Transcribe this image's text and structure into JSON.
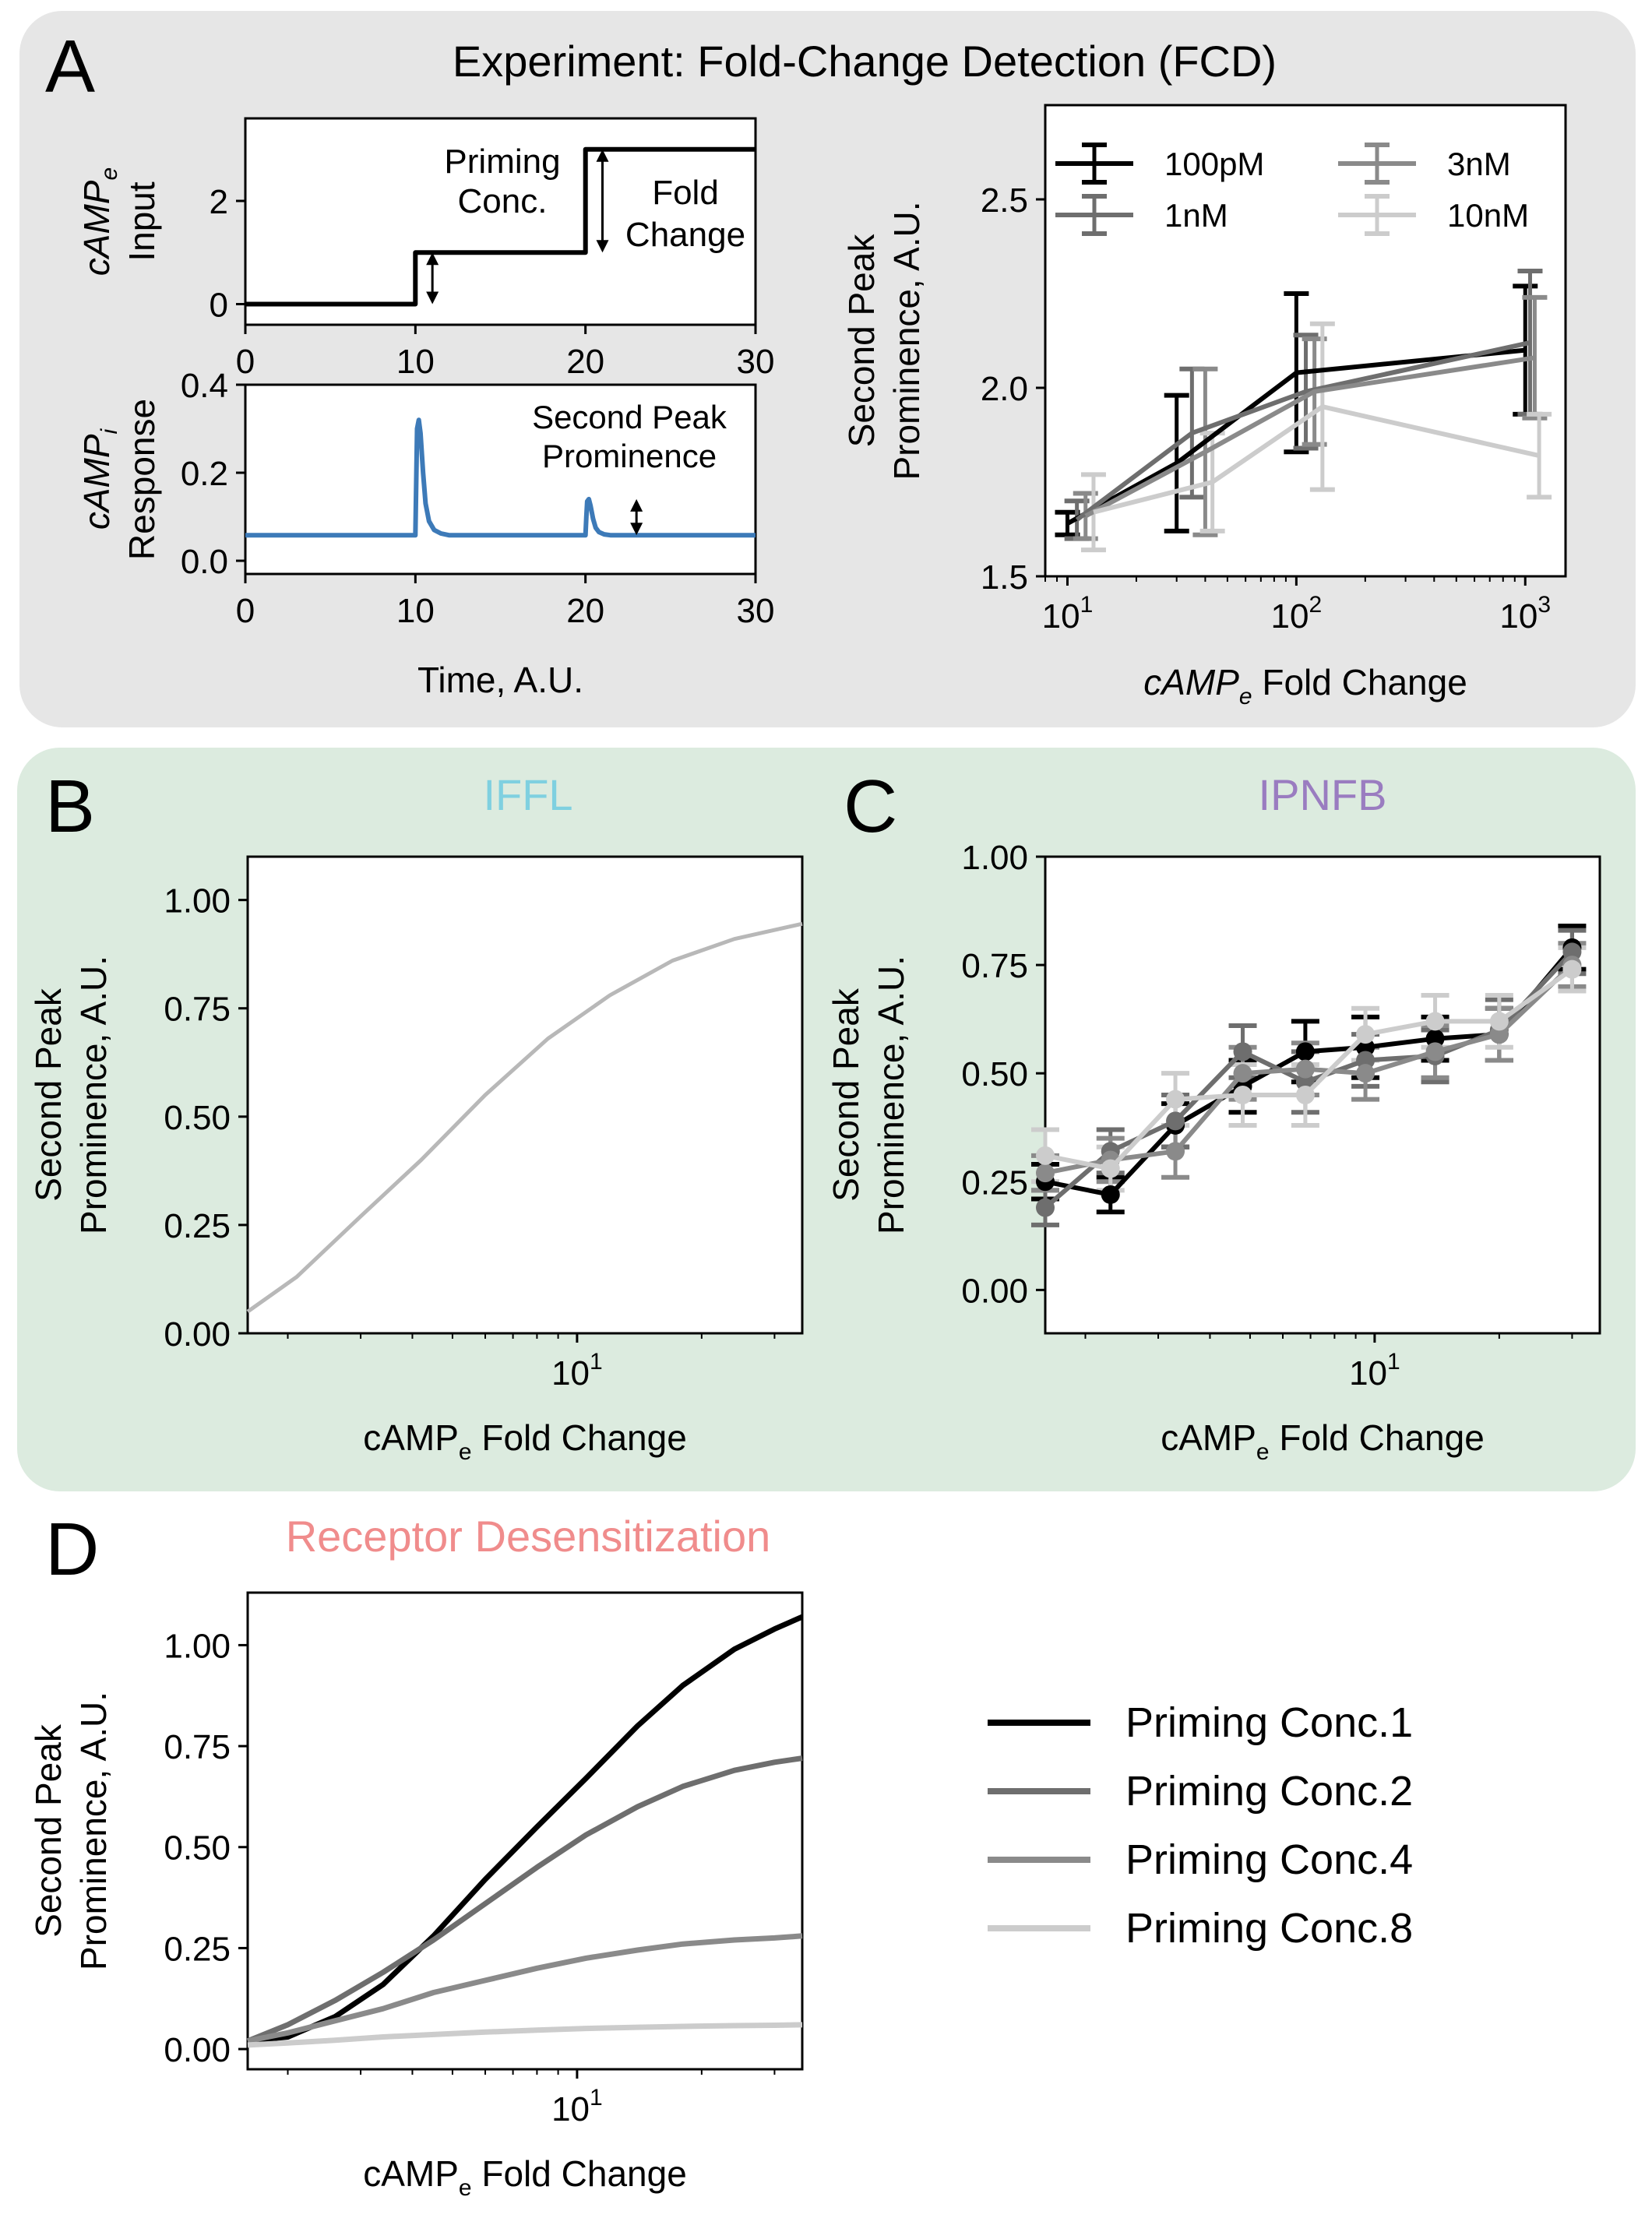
{
  "colors": {
    "panel_a_bg": "#e6e6e6",
    "panel_bc_bg": "#dcebdf",
    "iffl_title": "#7fd0e0",
    "ipnfb_title": "#9a7cc0",
    "desens_title": "#f08c8c",
    "trace_blue": "#3d7ab8",
    "black": "#000000",
    "gray_dark": "#6e6e6e",
    "gray_mid": "#8a8a8a",
    "gray_light": "#cccccc"
  },
  "panel_a": {
    "letter": "A",
    "title": "Experiment: Fold-Change Detection (FCD)"
  },
  "panel_b": {
    "letter": "B",
    "title": "IFFL"
  },
  "panel_c": {
    "letter": "C",
    "title": "IPNFB"
  },
  "panel_d": {
    "letter": "D",
    "title": "Receptor Desensitization"
  },
  "legend_d": {
    "entries": [
      "Priming Conc.1",
      "Priming Conc.2",
      "Priming Conc.4",
      "Priming Conc.8"
    ]
  },
  "chart_data": [
    {
      "id": "a_input",
      "type": "line",
      "ylabel": "cAMPe Input",
      "ylabel_main": "cAMP",
      "ylabel_sub": "e",
      "ylabel_line2": "Input",
      "xlim": [
        0,
        30
      ],
      "ylim": [
        -0.4,
        3.6
      ],
      "xticks": [
        0,
        10,
        20,
        30
      ],
      "yticks": [
        0,
        2
      ],
      "x": [
        0,
        10,
        10,
        20,
        20,
        30
      ],
      "y": [
        0,
        0,
        1,
        1,
        3,
        3
      ],
      "annotations": [
        "Priming",
        "Conc.",
        "Fold",
        "Change"
      ]
    },
    {
      "id": "a_response",
      "type": "line",
      "xlabel": "Time, A.U.",
      "ylabel": "cAMPi Response",
      "ylabel_main": "cAMP",
      "ylabel_sub": "i",
      "ylabel_line2": "Response",
      "xlim": [
        0,
        30
      ],
      "ylim": [
        -0.03,
        0.4
      ],
      "xticks": [
        0,
        10,
        20,
        30
      ],
      "yticks": [
        0.0,
        0.2,
        0.4
      ],
      "ytick_labels": [
        "0.0",
        "0.2",
        "0.4"
      ],
      "x": [
        0,
        10,
        10.05,
        10.1,
        10.2,
        10.3,
        10.45,
        10.6,
        10.8,
        11.1,
        11.5,
        12,
        20,
        20.05,
        20.1,
        20.2,
        20.3,
        20.45,
        20.6,
        20.8,
        21.1,
        21.5,
        30
      ],
      "y": [
        0.058,
        0.058,
        0.18,
        0.3,
        0.32,
        0.29,
        0.2,
        0.13,
        0.09,
        0.07,
        0.062,
        0.058,
        0.058,
        0.1,
        0.135,
        0.14,
        0.125,
        0.095,
        0.075,
        0.065,
        0.06,
        0.058,
        0.058
      ],
      "annotations": [
        "Second Peak",
        "Prominence"
      ]
    },
    {
      "id": "a_fcd",
      "type": "line",
      "scale": "log-x",
      "xlabel": "cAMPe Fold Change",
      "xlabel_main": "cAMP",
      "xlabel_sub": "e",
      "xlabel_rest": " Fold Change",
      "ylabel": "Second Peak Prominence, A.U.",
      "ylabel_line1": "Second Peak",
      "ylabel_line2": "Prominence, A.U.",
      "xlim": [
        8,
        1500
      ],
      "ylim": [
        1.5,
        2.75
      ],
      "yticks": [
        1.5,
        2.0,
        2.5
      ],
      "ytick_labels": [
        "1.5",
        "2.0",
        "2.5"
      ],
      "xticks": [
        10,
        100,
        1000
      ],
      "xtick_bases": [
        "10",
        "10",
        "10"
      ],
      "xtick_exps": [
        "1",
        "2",
        "3"
      ],
      "legend": [
        "100pM",
        "3nM",
        "1nM",
        "10nM"
      ],
      "series": [
        {
          "name": "100pM",
          "color": "#000000",
          "x": [
            10,
            30,
            100,
            1000
          ],
          "y": [
            1.64,
            1.8,
            2.04,
            2.1
          ],
          "err": [
            0.03,
            0.18,
            0.21,
            0.17
          ]
        },
        {
          "name": "1nM",
          "color": "#6e6e6e",
          "x": [
            11,
            35,
            110,
            1050
          ],
          "y": [
            1.65,
            1.88,
            1.99,
            2.12
          ],
          "err": [
            0.05,
            0.17,
            0.15,
            0.19
          ]
        },
        {
          "name": "3nM",
          "color": "#8a8a8a",
          "x": [
            12,
            40,
            120,
            1100
          ],
          "y": [
            1.66,
            1.83,
            1.99,
            2.08
          ],
          "err": [
            0.06,
            0.22,
            0.14,
            0.16
          ]
        },
        {
          "name": "10nM",
          "color": "#cccccc",
          "x": [
            13,
            43,
            130,
            1150
          ],
          "y": [
            1.67,
            1.75,
            1.95,
            1.82
          ],
          "err": [
            0.1,
            0.13,
            0.22,
            0.11
          ]
        }
      ]
    },
    {
      "id": "b_iffl",
      "type": "line",
      "scale": "log-x",
      "xlabel": "cAMPe Fold Change",
      "xlabel_main": "cAMP",
      "xlabel_sub": "e",
      "xlabel_rest": " Fold Change",
      "ylabel": "Second Peak Prominence, A.U.",
      "ylabel_line1": "Second Peak",
      "ylabel_line2": "Prominence, A.U.",
      "xlim": [
        1.6,
        35
      ],
      "ylim": [
        0,
        1.1
      ],
      "yticks": [
        0,
        0.25,
        0.5,
        0.75,
        1.0
      ],
      "ytick_labels": [
        "0.00",
        "0.25",
        "0.50",
        "0.75",
        "1.00"
      ],
      "xticks": [
        10
      ],
      "xtick_bases": [
        "10"
      ],
      "xtick_exps": [
        "1"
      ],
      "series": [
        {
          "name": "",
          "color": "#b8b8b8",
          "x": [
            1.6,
            2.1,
            3,
            4.2,
            6,
            8.5,
            12,
            17,
            24,
            35
          ],
          "y": [
            0.05,
            0.13,
            0.27,
            0.4,
            0.55,
            0.68,
            0.78,
            0.86,
            0.91,
            0.945
          ]
        }
      ]
    },
    {
      "id": "c_ipnfb",
      "type": "line",
      "scale": "log-x",
      "xlabel": "cAMPe Fold Change",
      "xlabel_main": "cAMP",
      "xlabel_sub": "e",
      "xlabel_rest": " Fold Change",
      "ylabel": "Second Peak Prominence, A.U.",
      "ylabel_line1": "Second Peak",
      "ylabel_line2": "Prominence, A.U.",
      "xlim": [
        1.6,
        35
      ],
      "ylim": [
        -0.1,
        1.0
      ],
      "yticks": [
        0,
        0.25,
        0.5,
        0.75,
        1.0
      ],
      "ytick_labels": [
        "0.00",
        "0.25",
        "0.50",
        "0.75",
        "1.00"
      ],
      "xticks": [
        10
      ],
      "xtick_bases": [
        "10"
      ],
      "xtick_exps": [
        "1"
      ],
      "series": [
        {
          "name": "",
          "color": "#000000",
          "x": [
            1.6,
            2.3,
            3.3,
            4.8,
            6.8,
            9.5,
            14,
            20,
            30
          ],
          "y": [
            0.25,
            0.22,
            0.38,
            0.47,
            0.55,
            0.56,
            0.58,
            0.59,
            0.79
          ],
          "err": [
            0.04,
            0.04,
            0.05,
            0.06,
            0.07,
            0.07,
            0.05,
            0.06,
            0.05
          ]
        },
        {
          "name": "",
          "color": "#6e6e6e",
          "x": [
            1.6,
            2.3,
            3.3,
            4.8,
            6.8,
            9.5,
            14,
            20,
            30
          ],
          "y": [
            0.19,
            0.32,
            0.39,
            0.55,
            0.48,
            0.53,
            0.54,
            0.6,
            0.78
          ],
          "err": [
            0.04,
            0.05,
            0.06,
            0.06,
            0.07,
            0.06,
            0.06,
            0.07,
            0.05
          ]
        },
        {
          "name": "",
          "color": "#8a8a8a",
          "x": [
            1.6,
            2.3,
            3.3,
            4.8,
            6.8,
            9.5,
            14,
            20,
            30
          ],
          "y": [
            0.27,
            0.3,
            0.32,
            0.5,
            0.51,
            0.5,
            0.55,
            0.59,
            0.75
          ],
          "err": [
            0.04,
            0.05,
            0.06,
            0.06,
            0.06,
            0.06,
            0.06,
            0.06,
            0.05
          ]
        },
        {
          "name": "",
          "color": "#cccccc",
          "x": [
            1.6,
            2.3,
            3.3,
            4.8,
            6.8,
            9.5,
            14,
            20,
            30
          ],
          "y": [
            0.31,
            0.28,
            0.44,
            0.45,
            0.45,
            0.59,
            0.62,
            0.62,
            0.74
          ],
          "err": [
            0.06,
            0.05,
            0.06,
            0.07,
            0.07,
            0.06,
            0.06,
            0.06,
            0.05
          ]
        }
      ]
    },
    {
      "id": "d_desens",
      "type": "line",
      "scale": "log-x",
      "xlabel": "cAMPe Fold Change",
      "xlabel_main": "cAMP",
      "xlabel_sub": "e",
      "xlabel_rest": " Fold Change",
      "ylabel": "Second Peak Prominence, A.U.",
      "ylabel_line1": "Second Peak",
      "ylabel_line2": "Prominence, A.U.",
      "xlim": [
        1.6,
        35
      ],
      "ylim": [
        -0.05,
        1.13
      ],
      "yticks": [
        0,
        0.25,
        0.5,
        0.75,
        1.0
      ],
      "ytick_labels": [
        "0.00",
        "0.25",
        "0.50",
        "0.75",
        "1.00"
      ],
      "xticks": [
        10
      ],
      "xtick_bases": [
        "10"
      ],
      "xtick_exps": [
        "1"
      ],
      "series": [
        {
          "name": "Priming Conc.1",
          "color": "#000000",
          "x": [
            1.6,
            2,
            2.6,
            3.4,
            4.5,
            6,
            8,
            10.5,
            14,
            18,
            24,
            30,
            35
          ],
          "y": [
            0.02,
            0.03,
            0.08,
            0.16,
            0.28,
            0.42,
            0.55,
            0.67,
            0.8,
            0.9,
            0.99,
            1.04,
            1.07
          ]
        },
        {
          "name": "Priming Conc.2",
          "color": "#6e6e6e",
          "x": [
            1.6,
            2,
            2.6,
            3.4,
            4.5,
            6,
            8,
            10.5,
            14,
            18,
            24,
            30,
            35
          ],
          "y": [
            0.02,
            0.06,
            0.12,
            0.19,
            0.27,
            0.36,
            0.45,
            0.53,
            0.6,
            0.65,
            0.69,
            0.71,
            0.72
          ]
        },
        {
          "name": "Priming Conc.4",
          "color": "#8a8a8a",
          "x": [
            1.6,
            2,
            2.6,
            3.4,
            4.5,
            6,
            8,
            10.5,
            14,
            18,
            24,
            30,
            35
          ],
          "y": [
            0.02,
            0.04,
            0.07,
            0.1,
            0.14,
            0.17,
            0.2,
            0.225,
            0.245,
            0.26,
            0.27,
            0.275,
            0.28
          ]
        },
        {
          "name": "Priming Conc.8",
          "color": "#cccccc",
          "x": [
            1.6,
            2,
            2.6,
            3.4,
            4.5,
            6,
            8,
            10.5,
            14,
            18,
            24,
            30,
            35
          ],
          "y": [
            0.01,
            0.015,
            0.022,
            0.03,
            0.036,
            0.042,
            0.047,
            0.051,
            0.054,
            0.056,
            0.058,
            0.059,
            0.06
          ]
        }
      ]
    }
  ]
}
